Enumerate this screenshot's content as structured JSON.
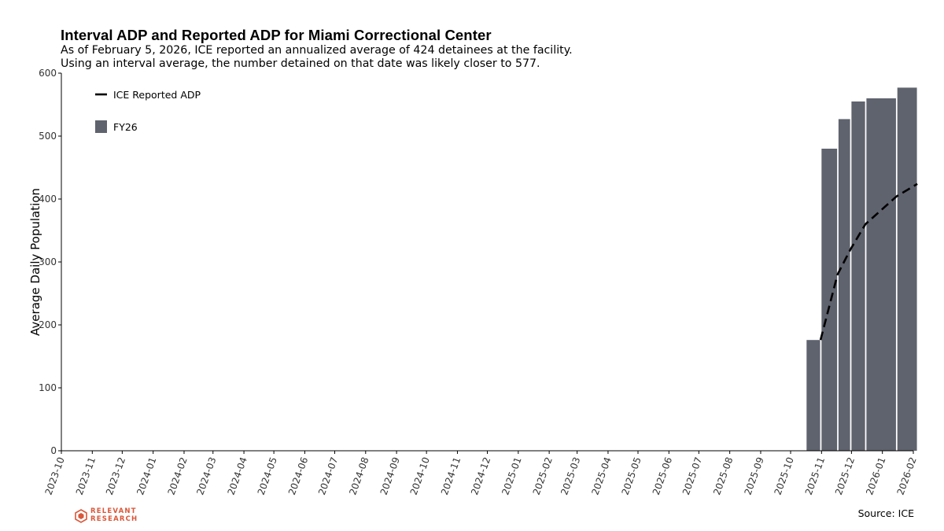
{
  "header": {
    "title": "Interval ADP and Reported ADP for Miami Correctional Center",
    "subtitle_line1": "As of February 5, 2026, ICE reported an annualized average of 424 detainees at the facility.",
    "subtitle_line2": "Using an interval average, the number detained on that date was likely closer to 577."
  },
  "footer": {
    "source": "Source: ICE",
    "logo_line1": "RELEVANT",
    "logo_line2": "RESEARCH"
  },
  "colors": {
    "bar": "#5f636e",
    "line": "#000000",
    "logo": "#d9573a"
  },
  "chart_data": {
    "type": "bar",
    "title": "Interval ADP and Reported ADP for Miami Correctional Center",
    "ylabel": "Average Daily Population",
    "xlabel": "",
    "ylim": [
      0,
      600
    ],
    "yticks": [
      0,
      100,
      200,
      300,
      400,
      500,
      600
    ],
    "xlim": [
      "2023-10",
      "2026-02"
    ],
    "x_tick_labels": [
      "2023-10",
      "2023-11",
      "2023-12",
      "2024-01",
      "2024-02",
      "2024-03",
      "2024-04",
      "2024-05",
      "2024-06",
      "2024-07",
      "2024-08",
      "2024-09",
      "2024-10",
      "2024-11",
      "2024-12",
      "2025-01",
      "2025-02",
      "2025-03",
      "2025-04",
      "2025-05",
      "2025-06",
      "2025-07",
      "2025-08",
      "2025-09",
      "2025-10",
      "2025-11",
      "2025-12",
      "2026-01",
      "2026-02"
    ],
    "grid": false,
    "legend_position": "top-left",
    "bars": {
      "name": "FY26",
      "intervals": [
        {
          "start": "2025-10-17",
          "end": "2025-10-31",
          "value": 176
        },
        {
          "start": "2025-11-01",
          "end": "2025-11-17",
          "value": 480
        },
        {
          "start": "2025-11-18",
          "end": "2025-11-30",
          "value": 527
        },
        {
          "start": "2025-12-01",
          "end": "2025-12-15",
          "value": 555
        },
        {
          "start": "2025-12-16",
          "end": "2026-01-15",
          "value": 560
        },
        {
          "start": "2026-01-16",
          "end": "2026-02-05",
          "value": 577
        }
      ]
    },
    "line": {
      "name": "ICE Reported ADP",
      "style": "dashed",
      "points": [
        {
          "date": "2025-10-31",
          "value": 176
        },
        {
          "date": "2025-11-17",
          "value": 280
        },
        {
          "date": "2025-11-30",
          "value": 320
        },
        {
          "date": "2025-12-15",
          "value": 360
        },
        {
          "date": "2026-01-15",
          "value": 404
        },
        {
          "date": "2026-02-05",
          "value": 424
        }
      ]
    }
  }
}
